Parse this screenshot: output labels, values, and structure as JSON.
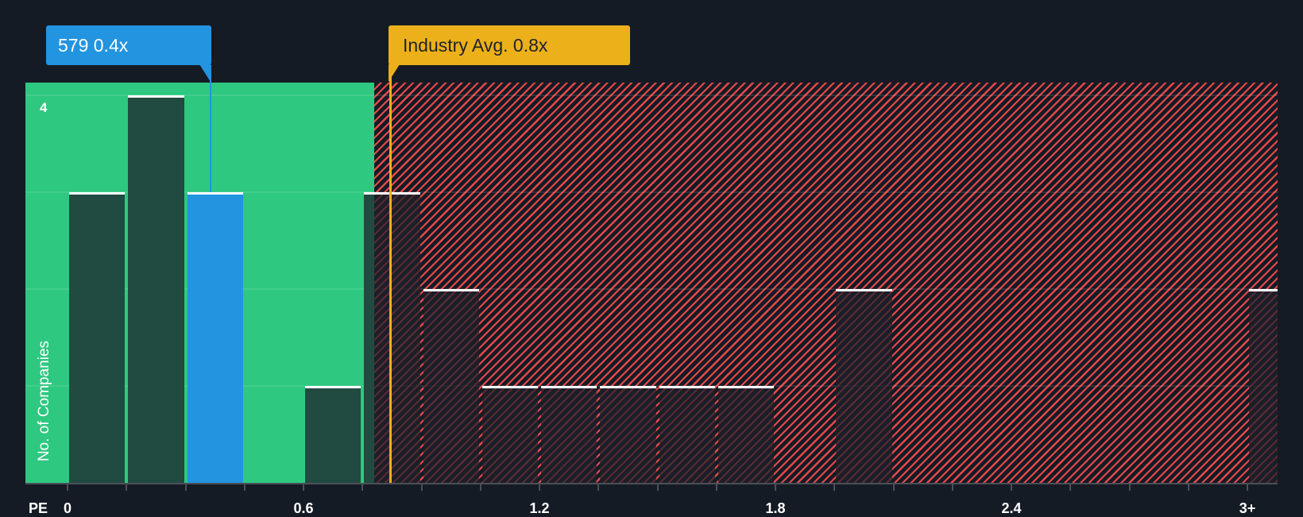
{
  "chart_data": {
    "type": "bar",
    "title": "",
    "xlabel": "PE",
    "ylabel": "No. of Companies",
    "x_tick_labels": [
      "0",
      "0.6",
      "1.2",
      "1.8",
      "2.4",
      "3+"
    ],
    "x_tick_values": [
      0,
      0.6,
      1.2,
      1.8,
      2.4,
      3.0
    ],
    "y_tick_labels": [
      "4"
    ],
    "ylim": [
      0,
      4
    ],
    "xlim": [
      0,
      3.15
    ],
    "bin_width": 0.15,
    "bins": [
      {
        "start": 0.0,
        "end": 0.15,
        "count": 3
      },
      {
        "start": 0.15,
        "end": 0.3,
        "count": 4
      },
      {
        "start": 0.3,
        "end": 0.45,
        "count": 3,
        "highlight": true
      },
      {
        "start": 0.45,
        "end": 0.6,
        "count": 0
      },
      {
        "start": 0.6,
        "end": 0.75,
        "count": 1
      },
      {
        "start": 0.75,
        "end": 0.9,
        "count": 3
      },
      {
        "start": 0.9,
        "end": 1.05,
        "count": 2
      },
      {
        "start": 1.05,
        "end": 1.2,
        "count": 1
      },
      {
        "start": 1.2,
        "end": 1.35,
        "count": 1
      },
      {
        "start": 1.35,
        "end": 1.5,
        "count": 1
      },
      {
        "start": 1.5,
        "end": 1.65,
        "count": 1
      },
      {
        "start": 1.65,
        "end": 1.8,
        "count": 1
      },
      {
        "start": 1.8,
        "end": 1.95,
        "count": 0
      },
      {
        "start": 1.95,
        "end": 2.1,
        "count": 2
      },
      {
        "start": 2.1,
        "end": 2.25,
        "count": 0
      },
      {
        "start": 2.25,
        "end": 2.4,
        "count": 0
      },
      {
        "start": 2.4,
        "end": 2.55,
        "count": 0
      },
      {
        "start": 2.55,
        "end": 2.7,
        "count": 0
      },
      {
        "start": 2.7,
        "end": 2.85,
        "count": 0
      },
      {
        "start": 2.85,
        "end": 3.0,
        "count": 0
      },
      {
        "start": 3.0,
        "end": 3.15,
        "count": 2,
        "label": "3+"
      }
    ],
    "categories": [
      "0-0.15",
      "0.15-0.3",
      "0.3-0.45",
      "0.45-0.6",
      "0.6-0.75",
      "0.75-0.9",
      "0.9-1.05",
      "1.05-1.2",
      "1.2-1.35",
      "1.35-1.5",
      "1.5-1.65",
      "1.65-1.8",
      "1.8-1.95",
      "1.95-2.1",
      "2.1-2.25",
      "2.25-2.4",
      "2.4-2.55",
      "2.55-2.7",
      "2.7-2.85",
      "2.85-3.0",
      "3+"
    ],
    "values": [
      3,
      4,
      3,
      0,
      1,
      3,
      2,
      1,
      1,
      1,
      1,
      1,
      0,
      2,
      0,
      0,
      0,
      0,
      0,
      0,
      2
    ],
    "annotations": [
      {
        "label": "579 0.4x",
        "value": 0.4,
        "type": "company"
      },
      {
        "label": "Industry Avg. 0.8x",
        "value": 0.8,
        "type": "industry_average"
      }
    ],
    "zones": [
      {
        "name": "below-average",
        "from": 0,
        "to": 0.78,
        "color": "#2ec880"
      },
      {
        "name": "above-average",
        "from": 0.78,
        "to": 3.15,
        "color": "#e8484a",
        "pattern": "diagonal-hatch"
      }
    ],
    "grid": true,
    "legend": null
  },
  "labels": {
    "company_callout": "579 0.4x",
    "industry_callout": "Industry Avg. 0.8x",
    "x_axis_title": "PE",
    "y_axis_title": "No. of Companies",
    "y_tick_top": "4"
  },
  "colors": {
    "background": "#151b24",
    "undervalued_zone": "#2ec880",
    "overvalued_hatch": "#e8484a",
    "company_highlight": "#2394e0",
    "industry_marker": "#ecb01a",
    "bar_green_zone": "#214a40",
    "bar_cap": "#ffffff"
  }
}
